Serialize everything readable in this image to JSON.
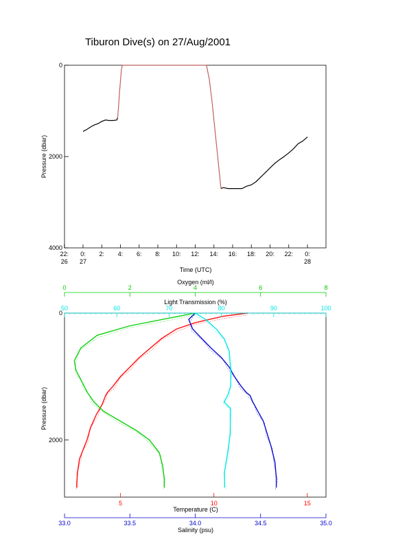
{
  "title": "Tiburon Dive(s) on 27/Aug/2001",
  "colors": {
    "temperature": "#ff0000",
    "salinity": "#0000cc",
    "oxygen": "#00cc00",
    "transmission": "#00e5e5",
    "depth_track": "#000000",
    "transit": "#c06060"
  },
  "chart_data": [
    {
      "type": "line",
      "title": "Tiburon Dive(s) on 27/Aug/2001",
      "xlabel": "Time (UTC)",
      "ylabel": "Pressure (dbar)",
      "y_reversed": true,
      "ylim": [
        0,
        4000
      ],
      "xlim_hours": [
        -2,
        26
      ],
      "x_ticks": [
        {
          "hour": -2,
          "label": "22:",
          "sub": "26"
        },
        {
          "hour": 0,
          "label": "0:",
          "sub": "27"
        },
        {
          "hour": 2,
          "label": "2:",
          "sub": ""
        },
        {
          "hour": 4,
          "label": "4:",
          "sub": ""
        },
        {
          "hour": 6,
          "label": "6:",
          "sub": ""
        },
        {
          "hour": 8,
          "label": "8:",
          "sub": ""
        },
        {
          "hour": 10,
          "label": "10:",
          "sub": ""
        },
        {
          "hour": 12,
          "label": "12:",
          "sub": ""
        },
        {
          "hour": 14,
          "label": "14:",
          "sub": ""
        },
        {
          "hour": 16,
          "label": "16:",
          "sub": ""
        },
        {
          "hour": 18,
          "label": "18:",
          "sub": ""
        },
        {
          "hour": 20,
          "label": "20:",
          "sub": ""
        },
        {
          "hour": 22,
          "label": "22:",
          "sub": ""
        },
        {
          "hour": 24,
          "label": "0:",
          "sub": "28"
        }
      ],
      "y_ticks": [
        0,
        2000,
        4000
      ],
      "series": [
        {
          "role": "bottom-morning",
          "x": [
            0.0,
            0.3,
            0.6,
            0.9,
            1.2,
            1.6,
            2.0,
            2.4,
            2.8,
            3.2,
            3.6,
            3.7
          ],
          "y": [
            1450,
            1420,
            1380,
            1340,
            1310,
            1280,
            1230,
            1200,
            1210,
            1210,
            1200,
            1150
          ]
        },
        {
          "role": "ascent",
          "x": [
            3.7,
            3.8,
            3.9,
            4.0,
            4.1,
            4.2
          ],
          "y": [
            1150,
            900,
            600,
            350,
            100,
            0
          ]
        },
        {
          "role": "surface",
          "x": [
            4.2,
            13.2
          ],
          "y": [
            0,
            0
          ]
        },
        {
          "role": "descent",
          "x": [
            13.2,
            13.5,
            13.8,
            14.1,
            14.4,
            14.6,
            14.75
          ],
          "y": [
            0,
            300,
            800,
            1400,
            2000,
            2400,
            2700
          ]
        },
        {
          "role": "bottom-afternoon",
          "x": [
            14.75,
            15.0,
            15.5,
            16.0,
            17.0,
            17.5,
            18.0,
            18.5,
            19.0,
            19.5,
            20.0,
            20.5,
            21.0,
            21.5,
            22.0,
            22.5,
            23.0,
            23.5,
            24.0
          ],
          "y": [
            2700,
            2680,
            2700,
            2700,
            2700,
            2650,
            2620,
            2550,
            2450,
            2350,
            2250,
            2150,
            2070,
            2000,
            1920,
            1830,
            1720,
            1660,
            1570
          ]
        }
      ]
    },
    {
      "type": "line",
      "ylabel": "Pressure (dbar)",
      "y_reversed": true,
      "ylim": [
        0,
        2900
      ],
      "y_ticks": [
        0,
        2000
      ],
      "axes": {
        "oxygen": {
          "label": "Oxygen (ml/l)",
          "range": [
            0,
            8
          ],
          "ticks": [
            0,
            2,
            4,
            6,
            8
          ]
        },
        "transmission": {
          "label": "Light Transmission (%)",
          "range": [
            50,
            100
          ],
          "ticks": [
            50,
            60,
            70,
            80,
            90,
            100
          ]
        },
        "temperature": {
          "label": "Temperature (C)",
          "range": [
            2,
            16
          ],
          "ticks": [
            5,
            10,
            15
          ]
        },
        "salinity": {
          "label": "Salinity (psu)",
          "range": [
            33.0,
            35.0
          ],
          "ticks": [
            "33.0",
            "33.5",
            "34.0",
            "34.5",
            "35.0"
          ]
        }
      },
      "series": [
        {
          "name": "Temperature (C)",
          "axis": "temperature",
          "value": [
            11.8,
            10.5,
            9.0,
            8.0,
            7.2,
            6.6,
            6.0,
            5.5,
            5.0,
            4.6,
            4.3,
            4.2,
            4.0,
            3.7,
            3.4,
            3.2,
            3.0,
            2.8,
            2.7,
            2.65,
            2.65
          ],
          "pressure": [
            0,
            50,
            150,
            250,
            400,
            550,
            700,
            850,
            1000,
            1150,
            1250,
            1300,
            1450,
            1600,
            1800,
            2000,
            2150,
            2300,
            2500,
            2700,
            2750
          ]
        },
        {
          "name": "Salinity (psu)",
          "axis": "salinity",
          "value": [
            34.0,
            33.95,
            33.98,
            34.05,
            34.12,
            34.2,
            34.26,
            34.3,
            34.35,
            34.39,
            34.42,
            34.44,
            34.48,
            34.52,
            34.55,
            34.58,
            34.61,
            34.62,
            34.62
          ],
          "pressure": [
            0,
            100,
            250,
            400,
            550,
            700,
            850,
            1000,
            1150,
            1250,
            1300,
            1400,
            1550,
            1700,
            1900,
            2100,
            2350,
            2600,
            2750
          ]
        },
        {
          "name": "Oxygen (ml/l)",
          "axis": "oxygen",
          "value": [
            4.0,
            3.0,
            2.0,
            1.0,
            0.5,
            0.3,
            0.35,
            0.5,
            0.6,
            0.7,
            0.9,
            1.2,
            1.7,
            2.2,
            2.6,
            2.9,
            3.0,
            3.05,
            3.05
          ],
          "pressure": [
            0,
            100,
            200,
            350,
            550,
            750,
            900,
            1050,
            1150,
            1250,
            1400,
            1550,
            1700,
            1850,
            2000,
            2200,
            2400,
            2600,
            2750
          ]
        },
        {
          "name": "Light Transmission (%)",
          "axis": "transmission",
          "value": [
            75,
            77,
            79,
            80.5,
            81.5,
            81.8,
            81.8,
            81.2,
            80.5,
            81.7,
            81.7,
            81.2,
            80.6,
            80.6
          ],
          "pressure": [
            0,
            100,
            250,
            400,
            600,
            900,
            1150,
            1300,
            1400,
            1500,
            1900,
            2200,
            2500,
            2750
          ]
        }
      ]
    }
  ]
}
